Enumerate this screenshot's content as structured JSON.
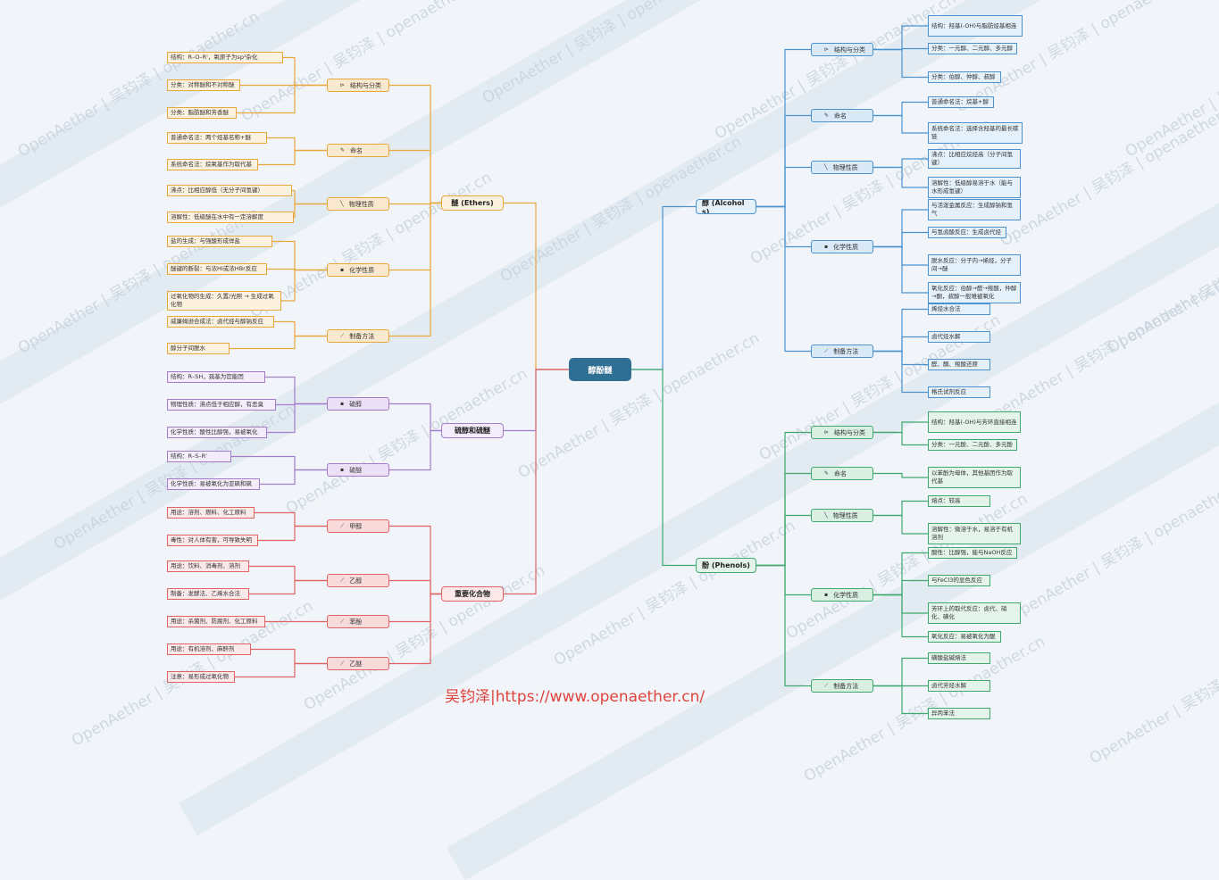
{
  "watermark": "OpenAether | 吴钧泽 | openaether.cn",
  "footer": "吴钧泽|https://www.openaether.cn/",
  "root": "醇酚醚",
  "ether": {
    "label": "醚 (Ethers)",
    "groups": [
      {
        "label": "结构与分类",
        "icon": "⊳",
        "items": [
          "结构：R–O–R'，氧原子为sp³杂化",
          "分类：对称醚和不对称醚",
          "分类：脂肪醚和芳香醚"
        ]
      },
      {
        "label": "命名",
        "icon": "✎",
        "items": [
          "普通命名法：两个烃基名称+醚",
          "系统命名法：烷氧基作为取代基"
        ]
      },
      {
        "label": "物理性质",
        "icon": "╲",
        "items": [
          "沸点：比相应醇低（无分子间氢键）",
          "溶解性：低级醚在水中有一定溶解度"
        ]
      },
      {
        "label": "化学性质",
        "icon": "▪",
        "items": [
          "盐的生成：与强酸形成佯盐",
          "醚键的断裂：与浓HI或浓HBr反应",
          "过氧化物的生成：久置/光照 → 生成过氧化物"
        ]
      },
      {
        "label": "制备方法",
        "icon": "⟋",
        "items": [
          "威廉姆逊合成法：卤代烃与醇钠反应",
          "醇分子间脱水"
        ]
      }
    ]
  },
  "thio": {
    "label": "硫醇和硫醚",
    "groups": [
      {
        "label": "硫醇",
        "icon": "▪",
        "items": [
          "结构：R–SH，巯基为官能团",
          "物理性质：沸点低于相应醇，有恶臭",
          "化学性质：酸性比醇强，易被氧化"
        ]
      },
      {
        "label": "硫醚",
        "icon": "▪",
        "items": [
          "结构：R–S–R'",
          "化学性质：易被氧化为亚砜和砜"
        ]
      }
    ]
  },
  "important": {
    "label": "重要化合物",
    "groups": [
      {
        "label": "甲醇",
        "icon": "⟋",
        "items": [
          "用途：溶剂、燃料、化工原料",
          "毒性：对人体有害，可导致失明"
        ]
      },
      {
        "label": "乙醇",
        "icon": "⟋",
        "items": [
          "用途：饮料、消毒剂、溶剂",
          "制备：发酵法、乙烯水合法"
        ]
      },
      {
        "label": "苯酚",
        "icon": "⟋",
        "items": [
          "用途：杀菌剂、防腐剂、化工原料"
        ]
      },
      {
        "label": "乙醚",
        "icon": "⟋",
        "items": [
          "用途：有机溶剂、麻醉剂",
          "注意：易形成过氧化物"
        ]
      }
    ]
  },
  "alcohol": {
    "label": "醇 (Alcohols)",
    "groups": [
      {
        "label": "结构与分类",
        "icon": "⊳",
        "items": [
          "结构：羟基(-OH)与脂肪烃基相连",
          "分类：一元醇、二元醇、多元醇",
          "分类：伯醇、仲醇、叔醇"
        ]
      },
      {
        "label": "命名",
        "icon": "✎",
        "items": [
          "普通命名法：烷基+醇",
          "系统命名法：选择含羟基的最长碳链"
        ]
      },
      {
        "label": "物理性质",
        "icon": "╲",
        "items": [
          "沸点：比相应烷烃高（分子间氢键）",
          "溶解性：低级醇易溶于水（能与水形成氢键）"
        ]
      },
      {
        "label": "化学性质",
        "icon": "▪",
        "items": [
          "与活泼金属反应：生成醇钠和氢气",
          "与氢卤酸反应：生成卤代烃",
          "脱水反应：分子内→烯烃，分子间→醚",
          "氧化反应：伯醇→醛→羧酸，仲醇→酮，叔醇一般难被氧化"
        ]
      },
      {
        "label": "制备方法",
        "icon": "⟋",
        "items": [
          "烯烃水合法",
          "卤代烃水解",
          "醛、酮、羧酸还原",
          "格氏试剂反应"
        ]
      }
    ]
  },
  "phenol": {
    "label": "酚 (Phenols)",
    "groups": [
      {
        "label": "结构与分类",
        "icon": "⊳",
        "items": [
          "结构：羟基(-OH)与芳环直接相连",
          "分类：一元酚、二元酚、多元酚"
        ]
      },
      {
        "label": "命名",
        "icon": "✎",
        "items": [
          "以苯酚为母体，其他基团作为取代基"
        ]
      },
      {
        "label": "物理性质",
        "icon": "╲",
        "items": [
          "熔点：较高",
          "溶解性：微溶于水，易溶于有机溶剂"
        ]
      },
      {
        "label": "化学性质",
        "icon": "▪",
        "items": [
          "酸性：比醇强，能与NaOH反应",
          "与FeCl3的显色反应",
          "芳环上的取代反应：卤代、硝化、磺化",
          "氧化反应：易被氧化为醌"
        ]
      },
      {
        "label": "制备方法",
        "icon": "⟋",
        "items": [
          "磺酸盐碱熔法",
          "卤代芳烃水解",
          "异丙苯法"
        ]
      }
    ]
  }
}
